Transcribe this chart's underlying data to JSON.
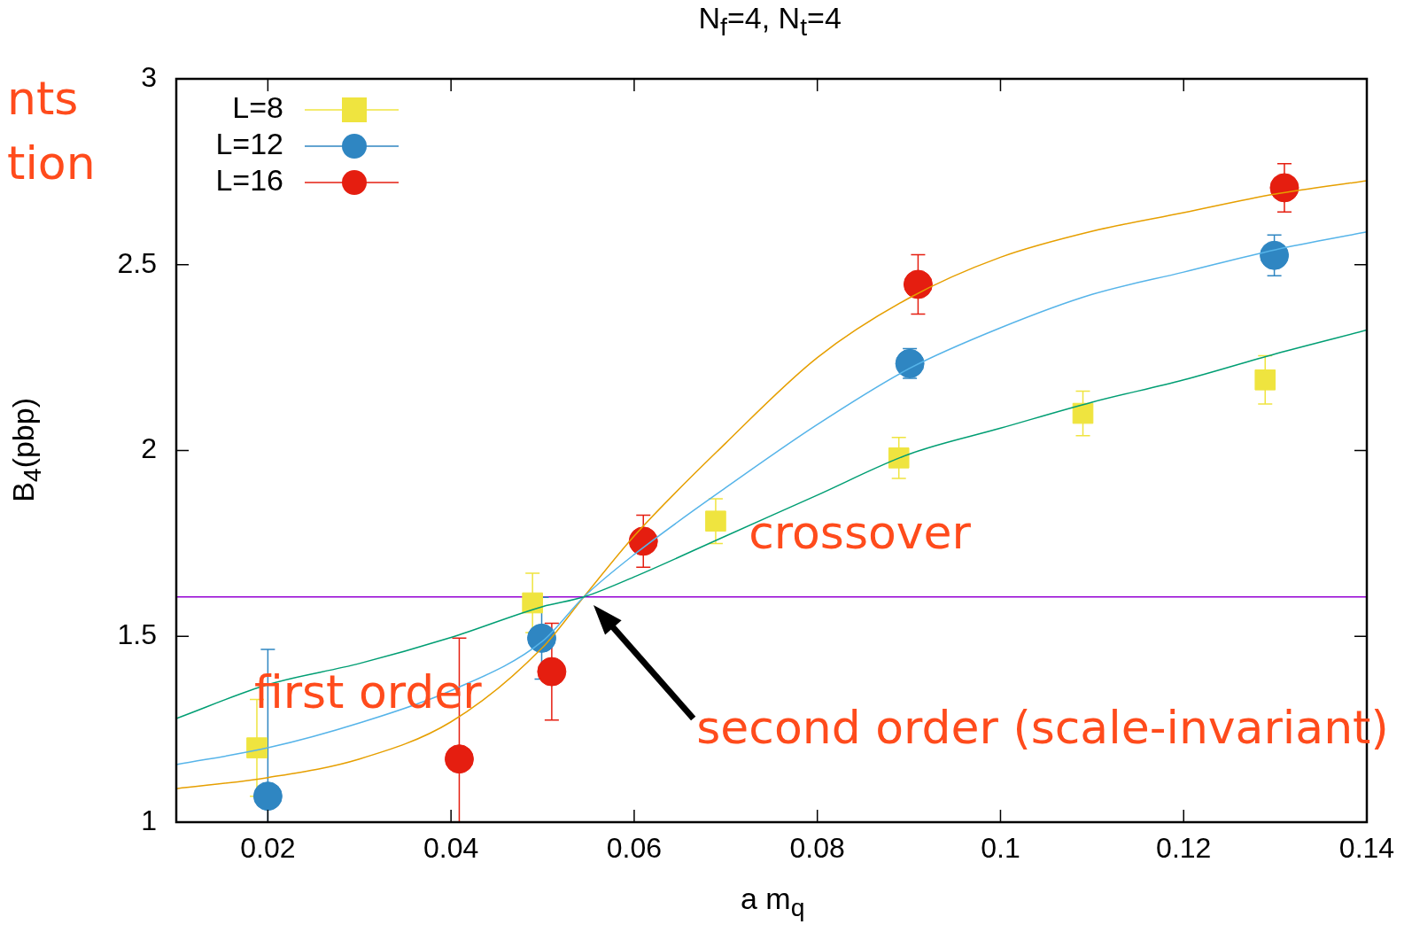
{
  "chart_data": {
    "type": "scatter",
    "title": "N$_{f}$=4, N$_{t}$=4",
    "xlabel": "a m$_{q}$",
    "ylabel": "B$_{4}$(pbp)",
    "xlim": [
      0.01,
      0.14
    ],
    "xticks": [
      0.02,
      0.04,
      0.06,
      0.08,
      0.1,
      0.12,
      0.14
    ],
    "ylim": [
      1,
      3
    ],
    "yticks": [
      1,
      1.5,
      2,
      2.5,
      3
    ],
    "grid": false,
    "legend": "top left",
    "series": [
      {
        "name": "L=8",
        "type": "scatter",
        "marker": "square",
        "color": "#efe43f",
        "x": [
          0.0188,
          0.0489,
          0.0689,
          0.0889,
          0.109,
          0.1289
        ],
        "values": [
          1.2,
          1.59,
          1.81,
          1.98,
          2.1,
          2.19
        ],
        "errors": [
          0.13,
          0.08,
          0.06,
          0.055,
          0.06,
          0.065
        ]
      },
      {
        "name": "L=12",
        "type": "scatter",
        "marker": "circle",
        "color": "#2f86c2",
        "x": [
          0.02,
          0.0499,
          0.0901,
          0.1299
        ],
        "values": [
          1.07,
          1.495,
          2.234,
          2.525
        ],
        "errors": [
          [
            1.0,
            1.465
          ],
          0.11,
          0.04,
          0.055
        ]
      },
      {
        "name": "L=16",
        "type": "scatter",
        "marker": "circle",
        "color": "#e51e10",
        "x": [
          0.0409,
          0.051,
          0.061,
          0.091,
          0.131
        ],
        "values": [
          1.17,
          1.405,
          1.756,
          2.447,
          2.707
        ],
        "errors": [
          [
            1.0,
            1.495
          ],
          0.13,
          0.07,
          0.08,
          0.065
        ]
      },
      {
        "type": "line",
        "marker": "none",
        "color": "#009e73",
        "x": [
          0.01,
          0.02,
          0.03,
          0.04,
          0.05,
          0.0545,
          0.06,
          0.07,
          0.08,
          0.09,
          0.1,
          0.11,
          0.12,
          0.13,
          0.14
        ],
        "values": [
          1.279,
          1.37,
          1.427,
          1.497,
          1.58,
          1.606,
          1.66,
          1.77,
          1.88,
          1.99,
          2.06,
          2.13,
          2.19,
          2.26,
          2.324
        ]
      },
      {
        "type": "line",
        "marker": "none",
        "color": "#56b4e9",
        "x": [
          0.01,
          0.02,
          0.03,
          0.04,
          0.05,
          0.0545,
          0.06,
          0.07,
          0.08,
          0.09,
          0.1,
          0.11,
          0.12,
          0.13,
          0.14
        ],
        "values": [
          1.155,
          1.2,
          1.267,
          1.354,
          1.487,
          1.606,
          1.72,
          1.9,
          2.07,
          2.22,
          2.33,
          2.42,
          2.48,
          2.54,
          2.588
        ]
      },
      {
        "type": "line",
        "marker": "none",
        "color": "#e69f00",
        "x": [
          0.01,
          0.02,
          0.03,
          0.04,
          0.05,
          0.0545,
          0.06,
          0.07,
          0.08,
          0.09,
          0.1,
          0.11,
          0.12,
          0.13,
          0.14
        ],
        "values": [
          1.09,
          1.12,
          1.17,
          1.27,
          1.47,
          1.606,
          1.77,
          2.02,
          2.25,
          2.41,
          2.52,
          2.59,
          2.64,
          2.69,
          2.726
        ]
      }
    ],
    "ref_lines": [
      {
        "axis": "y",
        "value": 1.606,
        "color": "#9400d3"
      }
    ],
    "annotations": [
      "nts",
      "tion",
      "first order",
      "crossover",
      "second order (scale-invariant)"
    ]
  }
}
